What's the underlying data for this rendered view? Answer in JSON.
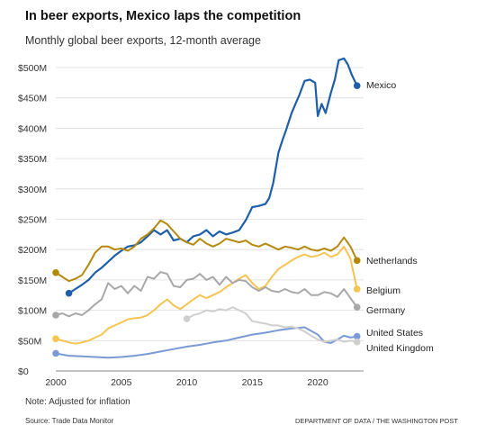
{
  "title": "In beer exports, Mexico laps the competition",
  "subtitle": "Monthly global beer exports, 12-month average",
  "note": "Note: Adjusted for inflation",
  "source": "Source: Trade Data Monitor",
  "credit": "DEPARTMENT OF DATA / THE WASHINGTON POST",
  "chart_data": {
    "type": "line",
    "title": "In beer exports, Mexico laps the competition",
    "subtitle": "Monthly global beer exports, 12-month average",
    "xlabel": "",
    "ylabel": "",
    "xlim": [
      2000,
      2023.5
    ],
    "ylim": [
      0,
      500
    ],
    "x_ticks": [
      2000,
      2005,
      2010,
      2015,
      2020
    ],
    "x_tick_labels": [
      "2000",
      "2005",
      "2010",
      "2015",
      "2020"
    ],
    "y_ticks": [
      0,
      50,
      100,
      150,
      200,
      250,
      300,
      350,
      400,
      450,
      500
    ],
    "y_tick_labels": [
      "$0",
      "$50M",
      "$100M",
      "$150M",
      "$200M",
      "$250M",
      "$300M",
      "$350M",
      "$400M",
      "$450M",
      "$500M"
    ],
    "grid": true,
    "legend": "direct labels at right end of lines",
    "series": [
      {
        "name": "Mexico",
        "color": "#1f5ea8",
        "x": [
          2001,
          2001.5,
          2002,
          2002.5,
          2003,
          2003.5,
          2004,
          2004.5,
          2005,
          2005.5,
          2006,
          2006.5,
          2007,
          2007.5,
          2008,
          2008.5,
          2009,
          2009.5,
          2010,
          2010.5,
          2011,
          2011.5,
          2012,
          2012.5,
          2013,
          2013.5,
          2014,
          2014.5,
          2015,
          2015.5,
          2016,
          2016.3,
          2016.6,
          2017,
          2017.3,
          2017.6,
          2018,
          2018.3,
          2018.6,
          2019,
          2019.4,
          2019.8,
          2020,
          2020.3,
          2020.6,
          2021,
          2021.3,
          2021.6,
          2022,
          2022.3,
          2022.6,
          2023
        ],
        "values": [
          128,
          135,
          142,
          150,
          162,
          170,
          180,
          190,
          198,
          205,
          207,
          212,
          222,
          232,
          225,
          232,
          215,
          218,
          212,
          222,
          225,
          232,
          222,
          230,
          225,
          228,
          232,
          248,
          270,
          272,
          275,
          285,
          310,
          360,
          380,
          398,
          425,
          440,
          455,
          478,
          480,
          475,
          420,
          440,
          425,
          458,
          480,
          512,
          515,
          505,
          488,
          470
        ]
      },
      {
        "name": "Netherlands",
        "color": "#b5890c",
        "x": [
          2000,
          2000.5,
          2001,
          2001.5,
          2002,
          2002.5,
          2003,
          2003.5,
          2004,
          2004.5,
          2005,
          2005.5,
          2006,
          2006.5,
          2007,
          2007.5,
          2008,
          2008.5,
          2009,
          2009.5,
          2010,
          2010.5,
          2011,
          2011.5,
          2012,
          2012.5,
          2013,
          2013.5,
          2014,
          2014.5,
          2015,
          2015.5,
          2016,
          2016.5,
          2017,
          2017.5,
          2018,
          2018.5,
          2019,
          2019.5,
          2020,
          2020.5,
          2021,
          2021.5,
          2022,
          2022.5,
          2023
        ],
        "values": [
          162,
          155,
          148,
          152,
          158,
          175,
          195,
          205,
          205,
          200,
          202,
          198,
          205,
          218,
          225,
          235,
          248,
          242,
          230,
          218,
          212,
          208,
          218,
          210,
          205,
          210,
          218,
          215,
          212,
          215,
          208,
          205,
          210,
          205,
          200,
          205,
          203,
          200,
          205,
          200,
          198,
          202,
          198,
          205,
          220,
          205,
          182
        ]
      },
      {
        "name": "Belgium",
        "color": "#f5c451",
        "x": [
          2000,
          2000.5,
          2001,
          2001.5,
          2002,
          2002.5,
          2003,
          2003.5,
          2004,
          2004.5,
          2005,
          2005.5,
          2006,
          2006.5,
          2007,
          2007.5,
          2008,
          2008.5,
          2009,
          2009.5,
          2010,
          2010.5,
          2011,
          2011.5,
          2012,
          2012.5,
          2013,
          2013.5,
          2014,
          2014.5,
          2015,
          2015.5,
          2016,
          2016.5,
          2017,
          2017.5,
          2018,
          2018.5,
          2019,
          2019.5,
          2020,
          2020.5,
          2021,
          2021.5,
          2022,
          2022.5,
          2023
        ],
        "values": [
          53,
          50,
          47,
          45,
          47,
          50,
          55,
          60,
          70,
          75,
          80,
          85,
          87,
          88,
          92,
          100,
          110,
          118,
          108,
          102,
          110,
          118,
          125,
          120,
          125,
          130,
          138,
          145,
          152,
          158,
          145,
          135,
          140,
          155,
          168,
          175,
          182,
          188,
          192,
          188,
          190,
          195,
          188,
          192,
          205,
          185,
          135
        ]
      },
      {
        "name": "Germany",
        "color": "#a8a8a8",
        "x": [
          2000,
          2000.5,
          2001,
          2001.5,
          2002,
          2002.5,
          2003,
          2003.5,
          2004,
          2004.5,
          2005,
          2005.5,
          2006,
          2006.5,
          2007,
          2007.5,
          2008,
          2008.5,
          2009,
          2009.5,
          2010,
          2010.5,
          2011,
          2011.5,
          2012,
          2012.5,
          2013,
          2013.5,
          2014,
          2014.5,
          2015,
          2015.5,
          2016,
          2016.5,
          2017,
          2017.5,
          2018,
          2018.5,
          2019,
          2019.5,
          2020,
          2020.5,
          2021,
          2021.5,
          2022,
          2022.5,
          2023
        ],
        "values": [
          92,
          95,
          90,
          95,
          92,
          100,
          110,
          118,
          145,
          135,
          140,
          128,
          140,
          132,
          155,
          152,
          163,
          160,
          140,
          138,
          150,
          152,
          160,
          150,
          155,
          142,
          155,
          145,
          150,
          148,
          138,
          132,
          138,
          132,
          130,
          135,
          130,
          128,
          135,
          125,
          125,
          130,
          128,
          122,
          135,
          120,
          105
        ]
      },
      {
        "name": "United States",
        "color": "#7a9ad6",
        "x": [
          2000,
          2001,
          2002,
          2003,
          2004,
          2005,
          2006,
          2007,
          2008,
          2009,
          2010,
          2011,
          2012,
          2013,
          2014,
          2015,
          2016,
          2017,
          2018,
          2019,
          2020,
          2020.5,
          2021,
          2021.5,
          2022,
          2022.5,
          2023
        ],
        "values": [
          29,
          25,
          24,
          23,
          22,
          23,
          25,
          28,
          32,
          36,
          40,
          43,
          47,
          50,
          55,
          60,
          63,
          67,
          70,
          72,
          60,
          48,
          46,
          52,
          58,
          55,
          57
        ]
      },
      {
        "name": "United Kingdom",
        "color": "#cfcfcf",
        "x": [
          2010,
          2010.5,
          2011,
          2011.5,
          2012,
          2012.5,
          2013,
          2013.5,
          2014,
          2014.5,
          2015,
          2015.5,
          2016,
          2016.5,
          2017,
          2017.5,
          2018,
          2018.5,
          2019,
          2019.5,
          2020,
          2020.5,
          2021,
          2021.5,
          2022,
          2022.5,
          2023
        ],
        "values": [
          86,
          92,
          95,
          100,
          98,
          102,
          100,
          105,
          100,
          95,
          82,
          80,
          78,
          75,
          75,
          72,
          73,
          70,
          65,
          58,
          52,
          48,
          50,
          52,
          48,
          50,
          48
        ]
      }
    ]
  }
}
